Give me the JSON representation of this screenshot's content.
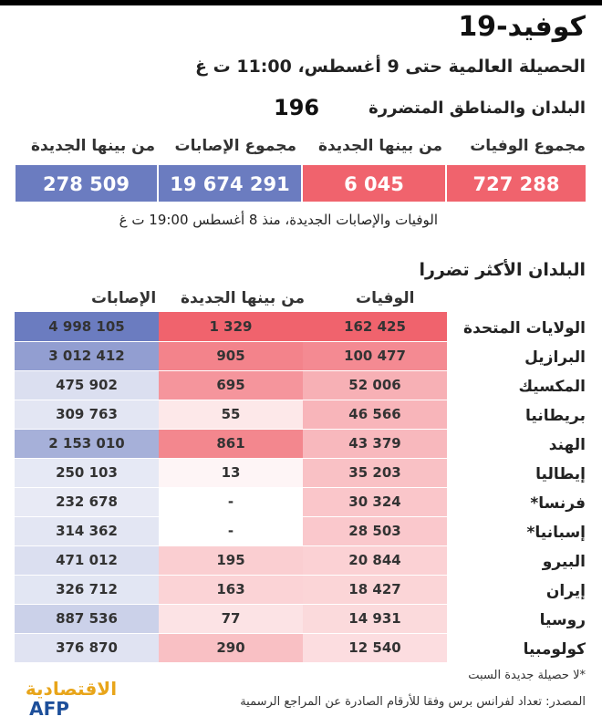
{
  "title": "كوفيد-19",
  "subtitle": "الحصيلة العالمية حتى 9 أغسطس، 11:00 ت غ",
  "countries": {
    "label": "البلدان والمناطق المتضررة",
    "value": "196"
  },
  "totals": {
    "headers": [
      "مجموع الوفيات",
      "من بينها الجديدة",
      "مجموع الإصابات",
      "من بينها الجديدة"
    ],
    "values": [
      "727 288",
      "6 045",
      "19 674 291",
      "278 509"
    ],
    "colors": [
      "#f0636d",
      "#f0636d",
      "#6b7cc0",
      "#6b7cc0"
    ]
  },
  "note_new": "الوفيات والإصابات الجديدة، منذ 8 أغسطس 19:00 ت غ",
  "most_affected_title": "البلدان الأكثر تضررا",
  "chart_data": {
    "type": "table",
    "columns": [
      "الوفيات",
      "من بينها الجديدة",
      "الإصابات"
    ],
    "rows": [
      {
        "country": "الولايات المتحدة",
        "deaths": "162 425",
        "new": "1 329",
        "cases": "4 998 105",
        "deaths_val": 162425,
        "new_val": 1329,
        "cases_val": 4998105
      },
      {
        "country": "البرازيل",
        "deaths": "100 477",
        "new": "905",
        "cases": "3 012 412",
        "deaths_val": 100477,
        "new_val": 905,
        "cases_val": 3012412
      },
      {
        "country": "المكسيك",
        "deaths": "52 006",
        "new": "695",
        "cases": "475 902",
        "deaths_val": 52006,
        "new_val": 695,
        "cases_val": 475902
      },
      {
        "country": "بريطانيا",
        "deaths": "46 566",
        "new": "55",
        "cases": "309 763",
        "deaths_val": 46566,
        "new_val": 55,
        "cases_val": 309763
      },
      {
        "country": "الهند",
        "deaths": "43 379",
        "new": "861",
        "cases": "2 153 010",
        "deaths_val": 43379,
        "new_val": 861,
        "cases_val": 2153010
      },
      {
        "country": "إيطاليا",
        "deaths": "35 203",
        "new": "13",
        "cases": "250 103",
        "deaths_val": 35203,
        "new_val": 13,
        "cases_val": 250103
      },
      {
        "country": "فرنسا*",
        "deaths": "30 324",
        "new": "-",
        "cases": "232 678",
        "deaths_val": 30324,
        "new_val": 0,
        "cases_val": 232678
      },
      {
        "country": "إسبانيا*",
        "deaths": "28 503",
        "new": "-",
        "cases": "314 362",
        "deaths_val": 28503,
        "new_val": 0,
        "cases_val": 314362
      },
      {
        "country": "البيرو",
        "deaths": "20 844",
        "new": "195",
        "cases": "471 012",
        "deaths_val": 20844,
        "new_val": 195,
        "cases_val": 471012
      },
      {
        "country": "إيران",
        "deaths": "18 427",
        "new": "163",
        "cases": "326 712",
        "deaths_val": 18427,
        "new_val": 163,
        "cases_val": 326712
      },
      {
        "country": "روسيا",
        "deaths": "14 931",
        "new": "77",
        "cases": "887 536",
        "deaths_val": 14931,
        "new_val": 77,
        "cases_val": 887536
      },
      {
        "country": "كولومبيا",
        "deaths": "12 540",
        "new": "290",
        "cases": "376 870",
        "deaths_val": 12540,
        "new_val": 290,
        "cases_val": 376870
      }
    ],
    "colors": {
      "red": "#f0636d",
      "blue": "#6b7cc0"
    }
  },
  "footnote_star": "*لا حصيلة جديدة السبت",
  "source": "المصدر: تعداد لفرانس برس وفقا للأرقام الصادرة عن المراجع الرسمية",
  "logo": {
    "brand": "الاقتصادية",
    "agency": "AFP"
  }
}
